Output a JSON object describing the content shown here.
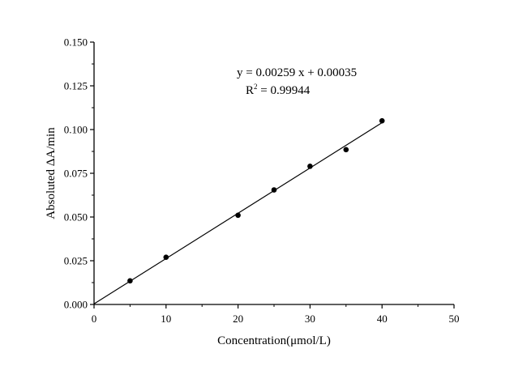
{
  "chart_data": {
    "type": "scatter",
    "title": "",
    "xlabel": "Concentration(μmol/L)",
    "ylabel": "Absoluted ΔA/min",
    "xlim": [
      0,
      50
    ],
    "ylim": [
      0,
      0.15
    ],
    "x_ticks": [
      "0",
      "10",
      "20",
      "30",
      "40",
      "50"
    ],
    "y_ticks": [
      "0.000",
      "0.025",
      "0.050",
      "0.075",
      "0.100",
      "0.125",
      "0.150"
    ],
    "grid": false,
    "series": [
      {
        "name": "data",
        "x": [
          5,
          10,
          20,
          25,
          30,
          35,
          40
        ],
        "y": [
          0.0135,
          0.027,
          0.051,
          0.0655,
          0.079,
          0.0885,
          0.105
        ]
      }
    ],
    "fit": {
      "equation": "y = 0.00259 x + 0.00035",
      "r2_label": "R",
      "r2_sup": "2",
      "r2_value": " = 0.99944",
      "slope": 0.00259,
      "intercept": 0.00035,
      "x_range": [
        0,
        40
      ]
    }
  }
}
